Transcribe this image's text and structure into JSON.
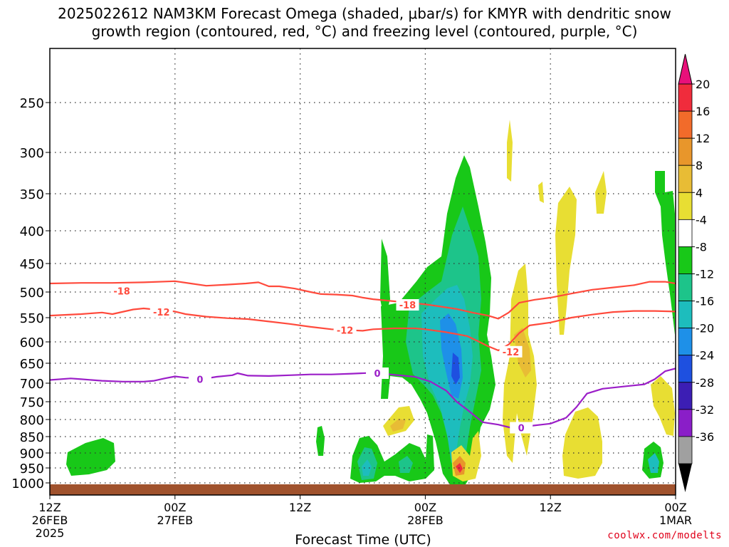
{
  "title": {
    "line1": "2025022612 NAM3KM Forecast Omega (shaded, μbar/s) for KMYR with dendritic snow",
    "line2": "growth region (contoured, red, °C) and freezing level (contoured, purple, °C)"
  },
  "credit": "coolwx.com/modelts",
  "chart_data": {
    "type": "heatmap",
    "xlabel": "Forecast Time (UTC)",
    "x_ticks": [
      {
        "hour": 0,
        "l1": "12Z",
        "l2": "26FEB",
        "l3": "2025"
      },
      {
        "hour": 12,
        "l1": "00Z",
        "l2": "27FEB",
        "l3": ""
      },
      {
        "hour": 24,
        "l1": "12Z",
        "l2": "",
        "l3": ""
      },
      {
        "hour": 36,
        "l1": "00Z",
        "l2": "28FEB",
        "l3": ""
      },
      {
        "hour": 48,
        "l1": "12Z",
        "l2": "",
        "l3": ""
      },
      {
        "hour": 60,
        "l1": "00Z",
        "l2": "1MAR",
        "l3": ""
      }
    ],
    "y_ticks": [
      250,
      300,
      350,
      400,
      450,
      500,
      550,
      600,
      650,
      700,
      750,
      800,
      850,
      900,
      950,
      1000
    ],
    "colorbar": {
      "labels": [
        "20",
        "16",
        "12",
        "8",
        "4",
        "-4",
        "-8",
        "-12",
        "-16",
        "-20",
        "-24",
        "-28",
        "-32",
        "-36"
      ],
      "colors": [
        "#f02c3c",
        "#f26b2a",
        "#e8962b",
        "#e8bc35",
        "#e8de33",
        "#ffffff",
        "#18c818",
        "#1dc48a",
        "#1dbdbd",
        "#1e90e8",
        "#1e50e0",
        "#3c1eb4",
        "#8a1ec8",
        "#a0a0a0"
      ],
      "top_cap": "#e8107a",
      "bottom_cap": "#000000"
    },
    "contours": [
      {
        "label": "-18",
        "color": "#ff4a3c",
        "label_hours": [
          [
            6.9,
            498
          ],
          [
            34.3,
            525
          ]
        ],
        "points": [
          [
            0,
            485
          ],
          [
            3,
            484
          ],
          [
            6,
            484
          ],
          [
            9,
            483
          ],
          [
            12,
            481
          ],
          [
            13.5,
            485
          ],
          [
            15,
            489
          ],
          [
            17,
            487
          ],
          [
            18.8,
            485
          ],
          [
            20,
            483
          ],
          [
            21,
            490
          ],
          [
            22,
            490
          ],
          [
            23.5,
            494
          ],
          [
            25,
            500
          ],
          [
            26,
            504
          ],
          [
            27.5,
            505
          ],
          [
            29,
            507
          ],
          [
            30,
            511
          ],
          [
            31,
            514
          ],
          [
            32,
            516
          ],
          [
            33,
            518
          ],
          [
            35,
            522
          ],
          [
            36,
            524
          ],
          [
            37,
            527
          ],
          [
            39,
            533
          ],
          [
            40.5,
            540
          ],
          [
            42,
            546
          ],
          [
            43,
            552
          ],
          [
            44,
            540
          ],
          [
            45,
            521
          ],
          [
            46.5,
            515
          ],
          [
            48,
            511
          ],
          [
            50,
            503
          ],
          [
            52,
            496
          ],
          [
            54,
            492
          ],
          [
            56,
            488
          ],
          [
            57.5,
            482
          ],
          [
            59,
            482
          ],
          [
            60,
            485
          ]
        ]
      },
      {
        "label": "-12",
        "color": "#ff4a3c",
        "label_hours": [
          [
            10.7,
            539
          ],
          [
            28.3,
            576
          ],
          [
            44.2,
            623
          ]
        ],
        "points": [
          [
            0,
            546
          ],
          [
            3,
            543
          ],
          [
            5,
            540
          ],
          [
            6,
            543
          ],
          [
            8,
            534
          ],
          [
            9,
            532
          ],
          [
            11,
            536
          ],
          [
            12,
            538
          ],
          [
            13,
            543
          ],
          [
            15,
            548
          ],
          [
            17,
            551
          ],
          [
            19,
            553
          ],
          [
            21,
            558
          ],
          [
            23,
            563
          ],
          [
            25,
            569
          ],
          [
            27,
            574
          ],
          [
            29,
            576
          ],
          [
            30,
            577
          ],
          [
            31,
            574
          ],
          [
            33,
            572
          ],
          [
            35,
            572
          ],
          [
            36,
            574
          ],
          [
            38,
            580
          ],
          [
            40,
            588
          ],
          [
            41,
            598
          ],
          [
            42,
            610
          ],
          [
            43,
            620
          ],
          [
            44,
            606
          ],
          [
            45,
            582
          ],
          [
            46,
            566
          ],
          [
            48,
            560
          ],
          [
            50,
            550
          ],
          [
            52,
            544
          ],
          [
            54,
            539
          ],
          [
            56,
            537
          ],
          [
            58,
            537
          ],
          [
            60,
            538
          ]
        ]
      },
      {
        "label": "0",
        "color": "#9b1ec8",
        "label_hours": [
          [
            14.4,
            690
          ],
          [
            31.4,
            675
          ],
          [
            45.2,
            824
          ]
        ],
        "points": [
          [
            0,
            692
          ],
          [
            2,
            688
          ],
          [
            3,
            690
          ],
          [
            5,
            694
          ],
          [
            7,
            696
          ],
          [
            9,
            696
          ],
          [
            10,
            694
          ],
          [
            11,
            688
          ],
          [
            12,
            683
          ],
          [
            13,
            686
          ],
          [
            15,
            688
          ],
          [
            16,
            684
          ],
          [
            17.5,
            680
          ],
          [
            18,
            675
          ],
          [
            19,
            681
          ],
          [
            21,
            682
          ],
          [
            23,
            680
          ],
          [
            25,
            678
          ],
          [
            27,
            678
          ],
          [
            29,
            676
          ],
          [
            31,
            674
          ],
          [
            33,
            679
          ],
          [
            35,
            684
          ],
          [
            36.5,
            696
          ],
          [
            38,
            720
          ],
          [
            39,
            750
          ],
          [
            40,
            772
          ],
          [
            41.5,
            808
          ],
          [
            43,
            815
          ],
          [
            44.2,
            824
          ],
          [
            46,
            819
          ],
          [
            48,
            812
          ],
          [
            49.5,
            795
          ],
          [
            50.5,
            765
          ],
          [
            51.5,
            728
          ],
          [
            53,
            715
          ],
          [
            55,
            709
          ],
          [
            57,
            703
          ],
          [
            58,
            690
          ],
          [
            59,
            670
          ],
          [
            60,
            663
          ]
        ]
      }
    ]
  }
}
